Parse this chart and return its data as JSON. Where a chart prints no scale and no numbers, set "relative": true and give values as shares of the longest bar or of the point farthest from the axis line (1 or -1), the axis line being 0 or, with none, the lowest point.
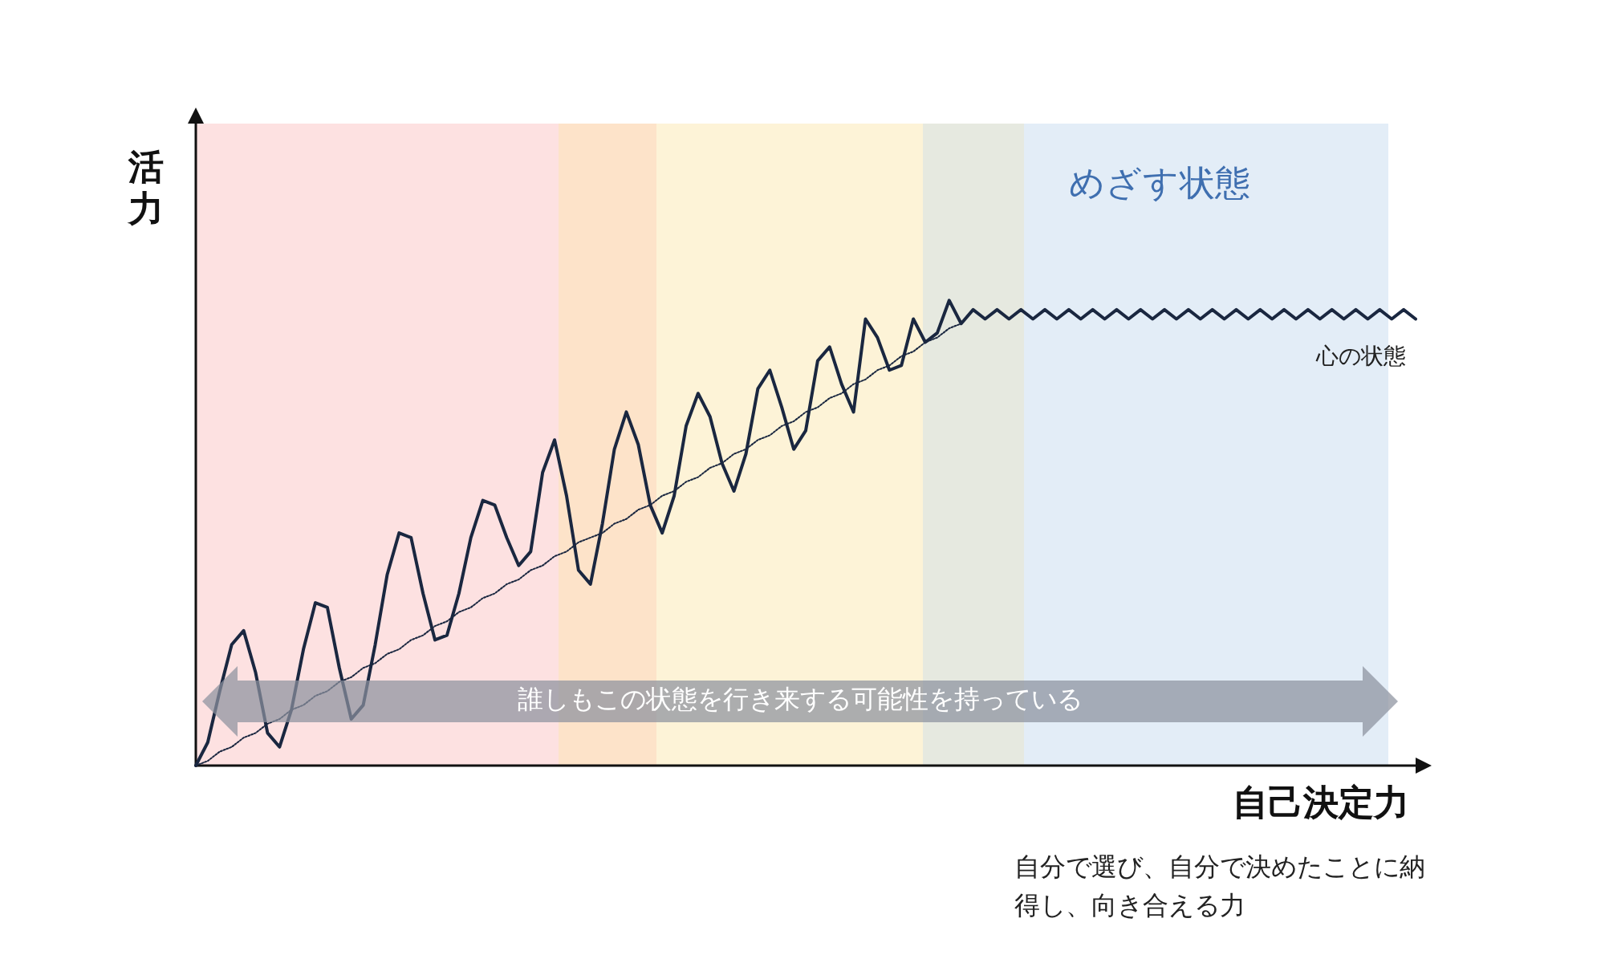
{
  "chart_data": {
    "type": "line",
    "relative": true,
    "grid": false,
    "legend": false,
    "marker": "none",
    "xlabel": "自己決定力",
    "ylabel": "活力",
    "annotations": [
      "めざす状態",
      "誰しもこの状態を行き来する可能性を持っている",
      "自分で選び、自分で決めたことに納得し、向き合える力"
    ],
    "categories": [
      null,
      null,
      null,
      null,
      null,
      null,
      null,
      null,
      null,
      null,
      null,
      null,
      null,
      null,
      null,
      null,
      null,
      null,
      null,
      null,
      null,
      null,
      null,
      null,
      null,
      null,
      null,
      null,
      null,
      null,
      null,
      null,
      null,
      null,
      null,
      null,
      null,
      null,
      null,
      null,
      null,
      null,
      null,
      null,
      null,
      null,
      null,
      null,
      null,
      null,
      null,
      null,
      null,
      null,
      null,
      null,
      null,
      null,
      null,
      null,
      null,
      null,
      null,
      null,
      null,
      null,
      null,
      null,
      null,
      null,
      null,
      null,
      null,
      null,
      null,
      null,
      null,
      null,
      null,
      null,
      null,
      null,
      null,
      null,
      null,
      null,
      null,
      null,
      null,
      null,
      null,
      null,
      null,
      null,
      null,
      null,
      null,
      null,
      null,
      null,
      null,
      null,
      null
    ],
    "series": [
      {
        "name": "心の状態",
        "color": "#1a2740",
        "line_style": "solid",
        "values": [
          0,
          0.05,
          0.16,
          0.26,
          0.29,
          0.2,
          0.07,
          0.04,
          0.12,
          0.25,
          0.35,
          0.34,
          0.21,
          0.1,
          0.13,
          0.26,
          0.41,
          0.5,
          0.49,
          0.37,
          0.27,
          0.28,
          0.37,
          0.49,
          0.57,
          0.56,
          0.49,
          0.43,
          0.46,
          0.63,
          0.7,
          0.58,
          0.42,
          0.39,
          0.52,
          0.68,
          0.76,
          0.69,
          0.56,
          0.5,
          0.58,
          0.73,
          0.8,
          0.75,
          0.65,
          0.59,
          0.67,
          0.81,
          0.85,
          0.77,
          0.68,
          0.72,
          0.87,
          0.9,
          0.82,
          0.76,
          0.96,
          0.92,
          0.85,
          0.86,
          0.96,
          0.91,
          0.93,
          1,
          0.95,
          0.98,
          0.96,
          0.98,
          0.96,
          0.98,
          0.96,
          0.98,
          0.96,
          0.98,
          0.96,
          0.98,
          0.96,
          0.98,
          0.96,
          0.98,
          0.96,
          0.98,
          0.96,
          0.98,
          0.96,
          0.98,
          0.96,
          0.98,
          0.96,
          0.98,
          0.96,
          0.98,
          0.96,
          0.98,
          0.96,
          0.98,
          0.96,
          0.98,
          0.96,
          0.98,
          0.96,
          0.98,
          0.96
        ]
      },
      {
        "color": "#1a2740",
        "line_style": "dotted",
        "values": [
          0,
          0.01,
          0.03,
          0.04,
          0.06,
          0.07,
          0.09,
          0.1,
          0.12,
          0.13,
          0.15,
          0.16,
          0.18,
          0.19,
          0.21,
          0.22,
          0.24,
          0.25,
          0.27,
          0.28,
          0.3,
          0.31,
          0.33,
          0.34,
          0.36,
          0.37,
          0.39,
          0.4,
          0.42,
          0.43,
          0.45,
          0.46,
          0.48,
          0.49,
          0.5,
          0.52,
          0.53,
          0.55,
          0.56,
          0.58,
          0.59,
          0.61,
          0.62,
          0.64,
          0.65,
          0.67,
          0.68,
          0.7,
          0.71,
          0.73,
          0.74,
          0.76,
          0.77,
          0.79,
          0.8,
          0.82,
          0.83,
          0.85,
          0.86,
          0.88,
          0.89,
          0.91,
          0.92,
          0.94,
          0.95,
          null,
          null,
          null,
          null,
          null,
          null,
          null,
          null,
          null,
          null,
          null,
          null,
          null,
          null,
          null,
          null,
          null,
          null,
          null,
          null,
          null,
          null,
          null,
          null,
          null,
          null,
          null,
          null,
          null,
          null,
          null,
          null,
          null,
          null,
          null,
          null,
          null,
          null
        ]
      }
    ]
  }
}
